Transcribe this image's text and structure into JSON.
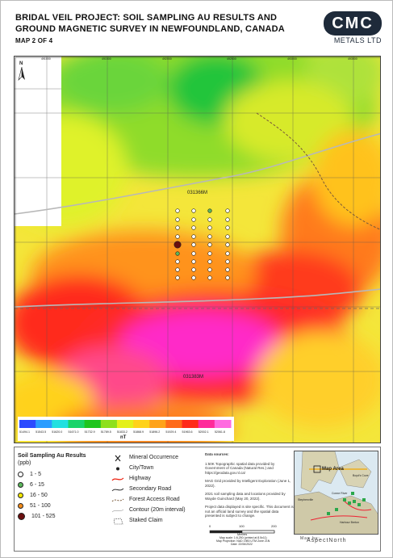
{
  "title": {
    "line1": "BRIDAL VEIL PROJECT: SOIL SAMPLING AU RESULTS AND",
    "line2": "GROUND MAGNETIC SURVEY IN NEWFOUNDLAND, CANADA",
    "map_label": "MAP 2 OF 4"
  },
  "logo": {
    "name": "CMC",
    "sub": "METALS LTD"
  },
  "map": {
    "claim_labels": [
      "031366M",
      "031383M"
    ],
    "grid_top_labels": [
      "491000",
      "491500",
      "492000",
      "492500",
      "493000",
      "493500"
    ],
    "grid_left_labels": [
      "5260000",
      "5259500",
      "5259000",
      "5258500",
      "5258000"
    ],
    "north_arrow": "N",
    "colorbar": {
      "ticks": [
        "51494.1",
        "51543.5",
        "51620.0",
        "51671.0",
        "51732.9",
        "51789.5",
        "51833.2",
        "51868.9",
        "51896.2",
        "51929.4",
        "51963.6",
        "52002.1",
        "52061.8"
      ],
      "unit": "nT",
      "colors": [
        "#2b4bff",
        "#2a9dff",
        "#22e0e0",
        "#19d46a",
        "#1ec51e",
        "#8ee01c",
        "#e4f01a",
        "#ffd21a",
        "#ffa31a",
        "#ff6b1a",
        "#ff2a1a",
        "#ff2a9a",
        "#ff6ae0"
      ]
    }
  },
  "legend": {
    "au_title": "Soil Sampling Au Results",
    "au_unit": "(ppb)",
    "au_classes": [
      {
        "label": "1 - 5",
        "color": "#ffffff"
      },
      {
        "label": "6 - 15",
        "color": "#5cb85c"
      },
      {
        "label": "16 - 50",
        "color": "#f2e600"
      },
      {
        "label": "51 - 100",
        "color": "#f28c1a"
      },
      {
        "label": "101 - 525",
        "color": "#6b0f0f"
      }
    ],
    "features": [
      {
        "label": "Mineral Occurrence",
        "icon": "crossed-hammers-icon"
      },
      {
        "label": "City/Town",
        "icon": "dot-icon"
      },
      {
        "label": "Highway",
        "icon": "highway-line-icon"
      },
      {
        "label": "Secondary Road",
        "icon": "secondary-road-line-icon"
      },
      {
        "label": "Forest Access Road",
        "icon": "forest-road-line-icon"
      },
      {
        "label": "Contour (20m interval)",
        "icon": "contour-line-icon"
      },
      {
        "label": "Staked Claim",
        "icon": "claim-polygon-icon"
      }
    ],
    "notes_title": "Data sources:",
    "notes": [
      "1:50K Topographic spatial data provided by Government of Canada (Natural Res.) and https://geodata.gov.nl.ca/",
      "MAG Grid provided by Intelligent Exploration (June 1, 2022).",
      "2021 soil sampling data and locations provided by Wayde Guinchard (May 20, 2022).",
      "Project data displayed is site specific. This document is not an official land survey and the spatial data presented is subject to change."
    ],
    "scale": {
      "ticks": [
        "0",
        "100",
        "200"
      ],
      "unit": "Metres",
      "ratio": "Map scale: 1:6,250 (printed at 8.5x11)",
      "projection": "Map Projection: NAD 1983 UTM Zone 21N",
      "date": "Date: 22/06/2022"
    },
    "inset": {
      "label": "Map Area",
      "towns": [
        "Conne River",
        "Harbour Breton",
        "Boyd's Cove",
        "Stephenville"
      ]
    },
    "credit": {
      "by": "Map by:",
      "company": "AspectNorth"
    }
  }
}
